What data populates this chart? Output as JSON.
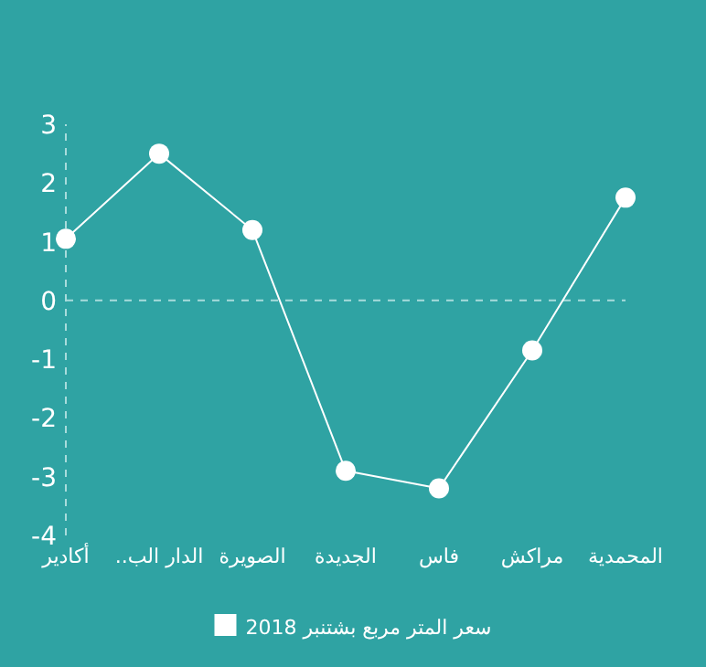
{
  "chart_data": {
    "type": "line",
    "categories": [
      "أكادير",
      "الدار الب..",
      "الصويرة",
      "الجديدة",
      "فاس",
      "مراكش",
      "المحمدية"
    ],
    "series": [
      {
        "name": "سعر المتر مربع بشتنبر 2018",
        "color": "#ffffff",
        "values": [
          1.05,
          2.5,
          1.2,
          -2.9,
          -3.2,
          -0.85,
          1.75
        ]
      }
    ],
    "ylim": [
      -4,
      3
    ],
    "yticks": [
      -4,
      -3,
      -2,
      -1,
      0,
      1,
      2,
      3
    ],
    "ref_lines": [
      {
        "axis": "y",
        "value": 0,
        "line_style": "dashed",
        "color": "#a8dcdc"
      }
    ],
    "marker": "circle",
    "grid": false,
    "legend": "bottom"
  }
}
